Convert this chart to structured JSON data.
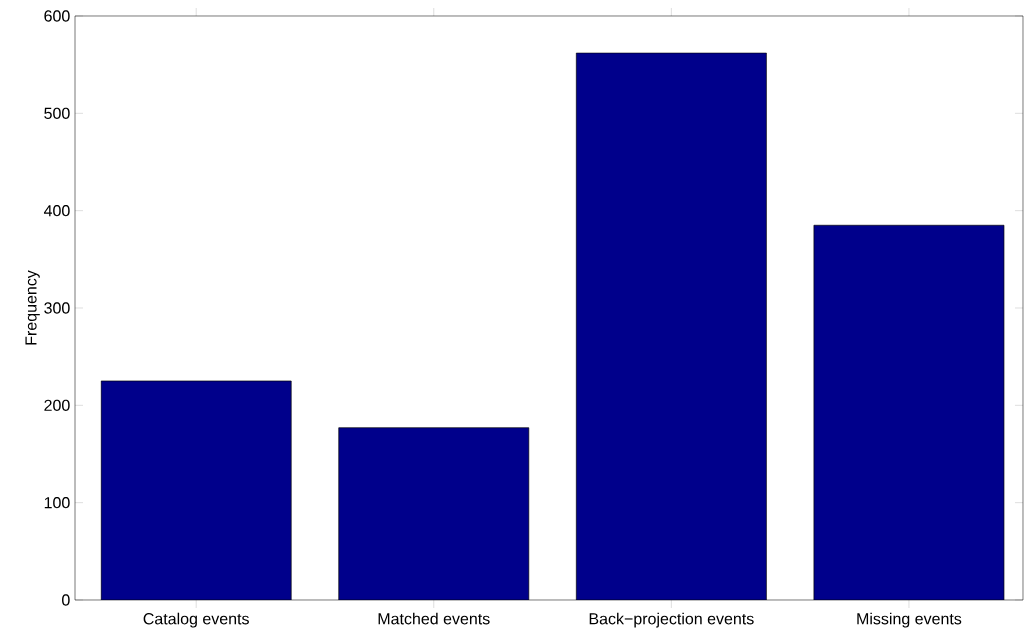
{
  "chart_data": {
    "type": "bar",
    "ylabel": "Frequency",
    "categories": [
      "Catalog events",
      "Matched events",
      "Back−projection events",
      "Missing events"
    ],
    "values": [
      225,
      177,
      562,
      385
    ],
    "color": "#00008b",
    "ylim": [
      0,
      600
    ],
    "yticks": [
      0,
      100,
      200,
      300,
      400,
      500,
      600
    ],
    "grid": false
  }
}
